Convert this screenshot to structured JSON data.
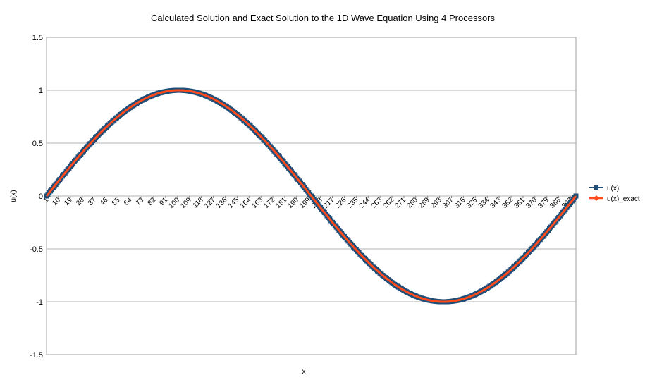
{
  "chart_data": {
    "type": "line",
    "title": "Calculated Solution and Exact Solution to the 1D Wave Equation Using 4 Processors",
    "xlabel": "x",
    "ylabel": "u(x)",
    "ylim": [
      -1.5,
      1.5
    ],
    "yticks": [
      1.5,
      1,
      0.5,
      0,
      -0.5,
      -1,
      -1.5
    ],
    "ytick_labels": [
      "1.5",
      "1",
      "0.5",
      "0",
      "-0.5",
      "-1",
      "-1.5"
    ],
    "x_count": 401,
    "x_tick_labels": [
      "1",
      "10",
      "19",
      "28",
      "37",
      "46",
      "55",
      "64",
      "73",
      "82",
      "91",
      "100",
      "109",
      "118",
      "127",
      "136",
      "145",
      "154",
      "163",
      "172",
      "181",
      "190",
      "199",
      "208",
      "217",
      "226",
      "235",
      "244",
      "253",
      "262",
      "271",
      "280",
      "289",
      "298",
      "307",
      "316",
      "325",
      "334",
      "343",
      "352",
      "361",
      "370",
      "379",
      "388",
      "397"
    ],
    "x_tick_values": [
      1,
      10,
      19,
      28,
      37,
      46,
      55,
      64,
      73,
      82,
      91,
      100,
      109,
      118,
      127,
      136,
      145,
      154,
      163,
      172,
      181,
      190,
      199,
      208,
      217,
      226,
      235,
      244,
      253,
      262,
      271,
      280,
      289,
      298,
      307,
      316,
      325,
      334,
      343,
      352,
      361,
      370,
      379,
      388,
      397
    ],
    "grid": true,
    "legend_position": "right",
    "series": [
      {
        "name": "u(x)",
        "color": "#1f4e79",
        "marker": "square",
        "function": "sin(2*pi*(x-1)/400)",
        "x_sample": [
          1,
          51,
          101,
          151,
          201,
          251,
          301,
          351,
          401
        ],
        "y_sample": [
          0,
          0.707,
          1,
          0.707,
          0,
          -0.707,
          -1,
          -0.707,
          0
        ]
      },
      {
        "name": "u(x)_exact",
        "color": "#ff4a1c",
        "marker": "diamond",
        "function": "sin(2*pi*(x-1)/400)",
        "x_sample": [
          1,
          51,
          101,
          151,
          201,
          251,
          301,
          351,
          401
        ],
        "y_sample": [
          0,
          0.707,
          1,
          0.707,
          0,
          -0.707,
          -1,
          -0.707,
          0
        ]
      }
    ]
  }
}
